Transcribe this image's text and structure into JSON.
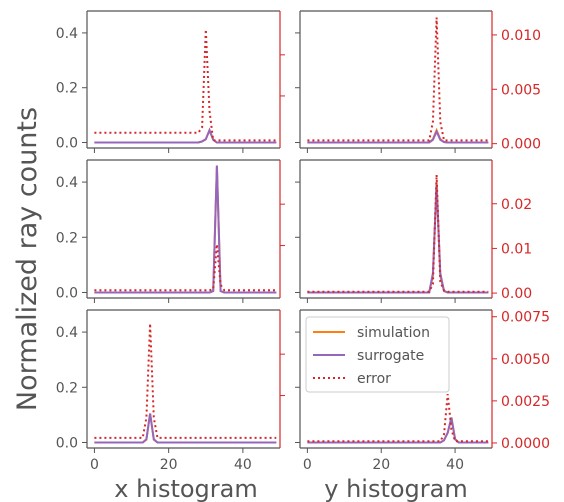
{
  "chart_data": {
    "type": "line",
    "ylabel": "Normalized ray counts",
    "xlabels": [
      "x histogram",
      "y histogram"
    ],
    "xlim": [
      -2,
      50
    ],
    "xticks": [
      "0",
      "20",
      "40"
    ],
    "left_ylim": [
      -0.02,
      0.48
    ],
    "left_yticks": [
      "0.0",
      "0.2",
      "0.4"
    ],
    "colors": {
      "simulation": "#ff7f0e",
      "surrogate": "#9467bd",
      "error": "#d62728",
      "axis": "#555555",
      "right_axis": "#d62728"
    },
    "legend": {
      "placement": "upper-left of bottom-right panel",
      "entries": [
        {
          "label": "simulation",
          "style": "solid",
          "color": "#ff7f0e"
        },
        {
          "label": "surrogate",
          "style": "solid",
          "color": "#9467bd"
        },
        {
          "label": "error",
          "style": "dotted",
          "color": "#d62728"
        }
      ]
    },
    "panels": [
      {
        "row": 0,
        "col": 0,
        "ylim": [
          -0.02,
          0.48
        ],
        "simulation": {
          "x": [
            0,
            28,
            29,
            30,
            31,
            32,
            33,
            49
          ],
          "y": [
            0,
            0,
            0.004,
            0.012,
            0.045,
            0.01,
            0,
            0
          ]
        },
        "surrogate": {
          "x": [
            0,
            28,
            29,
            30,
            31,
            32,
            33,
            49
          ],
          "y": [
            0,
            0,
            0.004,
            0.012,
            0.045,
            0.01,
            0,
            0
          ]
        },
        "error": {
          "x": [
            0,
            28,
            29,
            30,
            31,
            32,
            49
          ],
          "y": [
            0.001,
            0.001,
            0.0015,
            0.0105,
            0.003,
            0.0003,
            0.0003
          ]
        },
        "right_ylim": [
          -0.0004,
          0.0122
        ],
        "right_yticks": []
      },
      {
        "row": 0,
        "col": 1,
        "ylim": [
          -0.02,
          0.48
        ],
        "simulation": {
          "x": [
            0,
            33,
            34,
            35,
            36,
            37,
            38,
            49
          ],
          "y": [
            0,
            0,
            0.012,
            0.045,
            0.012,
            0.002,
            0,
            0
          ]
        },
        "surrogate": {
          "x": [
            0,
            33,
            34,
            35,
            36,
            37,
            38,
            49
          ],
          "y": [
            0,
            0,
            0.01,
            0.04,
            0.01,
            0.002,
            0,
            0
          ]
        },
        "error": {
          "x": [
            0,
            33,
            34,
            35,
            36,
            37,
            49
          ],
          "y": [
            0.0003,
            0.0003,
            0.002,
            0.0116,
            0.002,
            0.0003,
            0.0003
          ]
        },
        "right_ylim": [
          -0.0004,
          0.0122
        ],
        "right_yticks": [
          "0.000",
          "0.005",
          "0.010"
        ]
      },
      {
        "row": 1,
        "col": 0,
        "ylim": [
          -0.02,
          0.48
        ],
        "simulation": {
          "x": [
            0,
            31,
            32,
            33,
            34,
            35,
            49
          ],
          "y": [
            0,
            0,
            0.005,
            0.46,
            0.005,
            0,
            0
          ]
        },
        "surrogate": {
          "x": [
            0,
            31,
            32,
            33,
            34,
            35,
            49
          ],
          "y": [
            0,
            0,
            0.005,
            0.46,
            0.005,
            0,
            0
          ]
        },
        "error": {
          "x": [
            0,
            31,
            32,
            33,
            34,
            35,
            49
          ],
          "y": [
            0.0003,
            0.0003,
            0.0004,
            0.0045,
            0.0008,
            0.0003,
            0.0003
          ]
        },
        "right_ylim": [
          -0.0004,
          0.0122
        ],
        "right_yticks": []
      },
      {
        "row": 1,
        "col": 1,
        "ylim": [
          -0.02,
          0.48
        ],
        "simulation": {
          "x": [
            0,
            33,
            34,
            35,
            36,
            37,
            38,
            49
          ],
          "y": [
            0,
            0,
            0.06,
            0.4,
            0.06,
            0.005,
            0,
            0
          ]
        },
        "surrogate": {
          "x": [
            0,
            33,
            34,
            35,
            36,
            37,
            38,
            49
          ],
          "y": [
            0,
            0,
            0.07,
            0.39,
            0.07,
            0.006,
            0,
            0
          ]
        },
        "error": {
          "x": [
            0,
            33,
            34,
            35,
            36,
            37,
            38,
            49
          ],
          "y": [
            0.0003,
            0.0003,
            0.002,
            0.0265,
            0.0025,
            0.0006,
            0.0003,
            0.0003
          ]
        },
        "right_ylim": [
          -0.0011,
          0.0298
        ],
        "right_yticks": [
          "0.00",
          "0.01",
          "0.02"
        ]
      },
      {
        "row": 2,
        "col": 0,
        "ylim": [
          -0.02,
          0.48
        ],
        "simulation": {
          "x": [
            0,
            13,
            14,
            15,
            16,
            17,
            49
          ],
          "y": [
            0,
            0,
            0.01,
            0.105,
            0.01,
            0,
            0
          ]
        },
        "surrogate": {
          "x": [
            0,
            13,
            14,
            15,
            16,
            17,
            49
          ],
          "y": [
            0,
            0,
            0.012,
            0.105,
            0.012,
            0,
            0
          ]
        },
        "error": {
          "x": [
            0,
            13,
            14,
            15,
            16,
            17,
            49
          ],
          "y": [
            0.0003,
            0.0003,
            0.0015,
            0.0071,
            0.0015,
            0.0003,
            0.0003
          ]
        },
        "right_ylim": [
          -0.0003,
          0.0079
        ],
        "right_yticks": []
      },
      {
        "row": 2,
        "col": 1,
        "ylim": [
          -0.02,
          0.48
        ],
        "simulation": {
          "x": [
            0,
            36,
            37,
            38,
            39,
            40,
            41,
            49
          ],
          "y": [
            0,
            0,
            0.008,
            0.035,
            0.09,
            0.012,
            0,
            0
          ]
        },
        "surrogate": {
          "x": [
            0,
            36,
            37,
            38,
            39,
            40,
            41,
            49
          ],
          "y": [
            0,
            0,
            0.008,
            0.035,
            0.09,
            0.012,
            0,
            0
          ]
        },
        "error": {
          "x": [
            0,
            36,
            37,
            38,
            39,
            40,
            49
          ],
          "y": [
            0.0001,
            0.0001,
            0.0005,
            0.0029,
            0.0008,
            0.0001,
            0.0001
          ]
        },
        "right_ylim": [
          -0.0003,
          0.0079
        ],
        "right_yticks": [
          "0.0000",
          "0.0025",
          "0.0050",
          "0.0075"
        ]
      }
    ]
  }
}
